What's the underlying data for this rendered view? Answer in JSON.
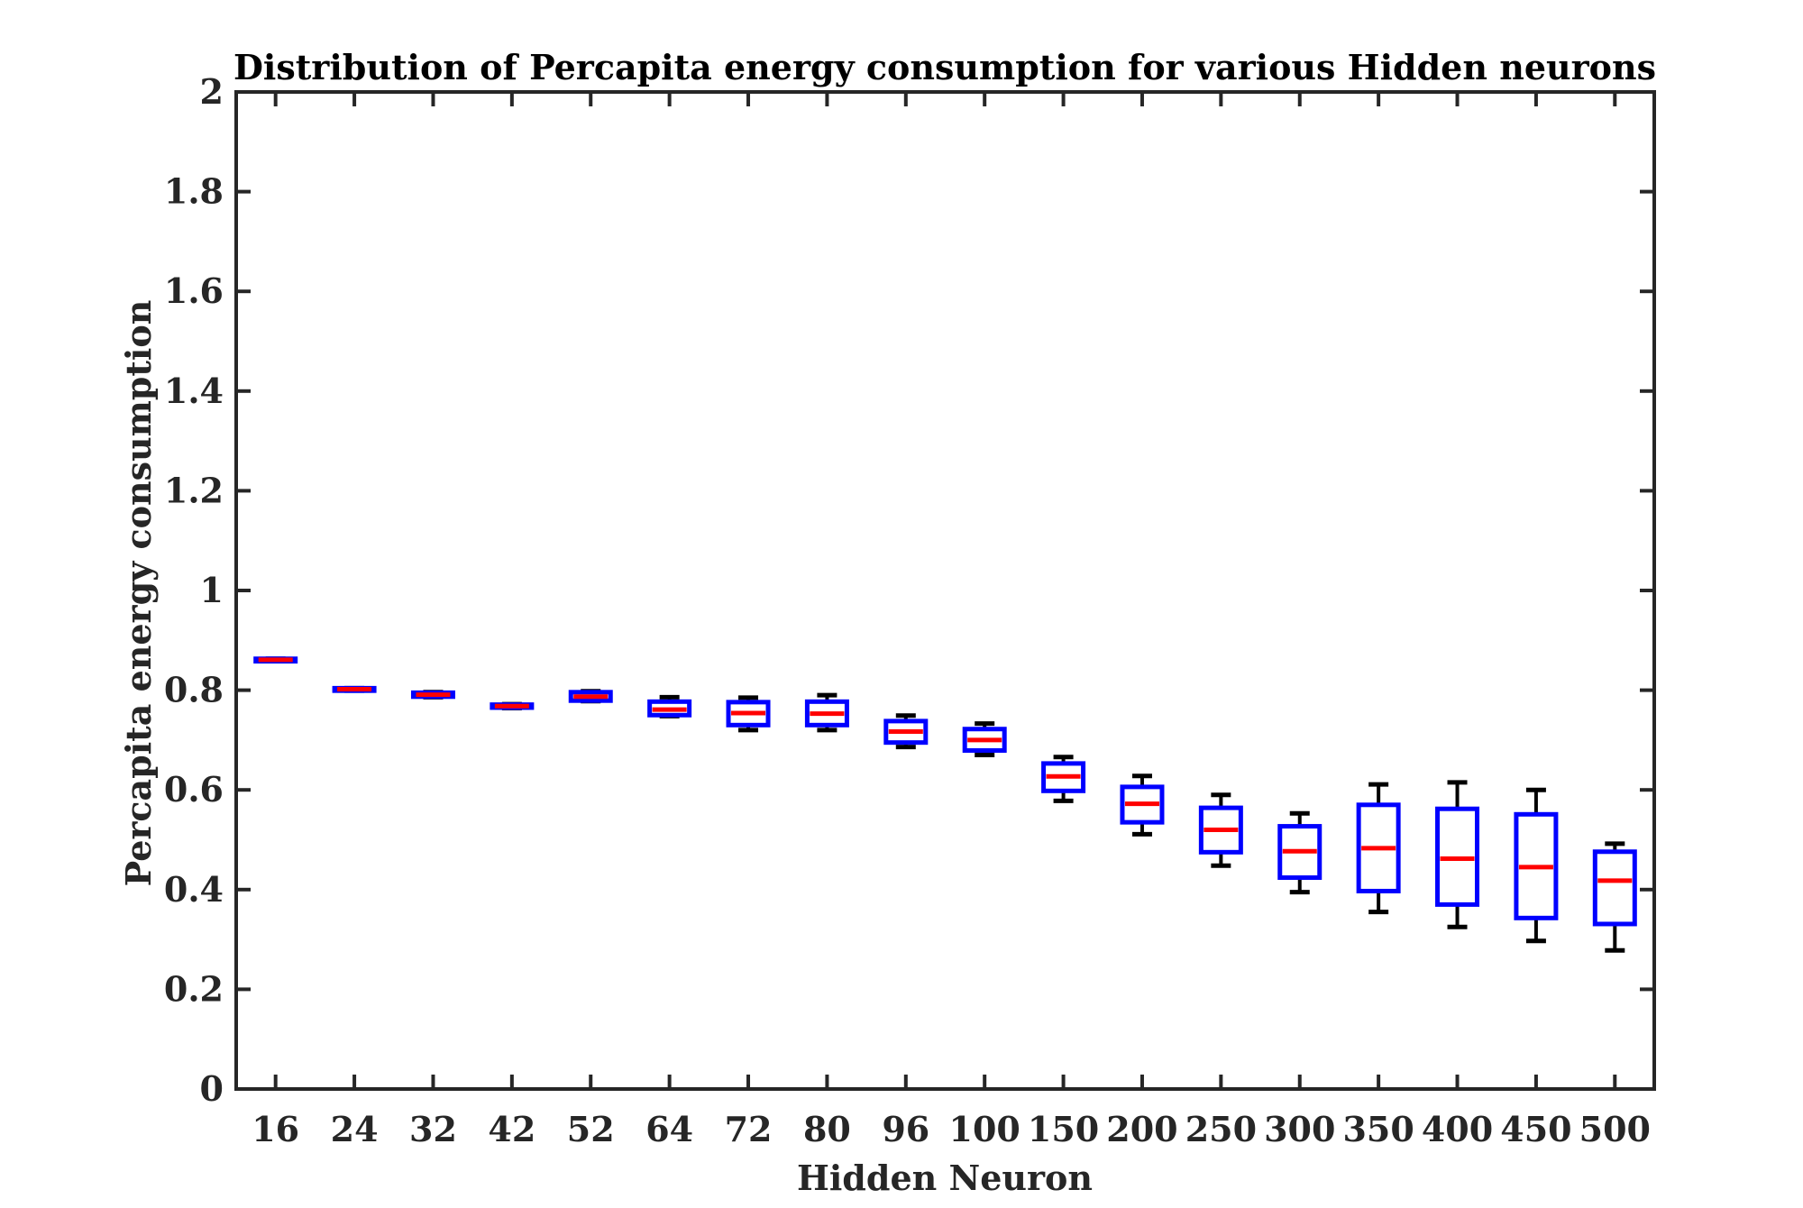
{
  "chart_data": {
    "type": "boxplot",
    "title": "Distribution of Percapita energy consumption for various Hidden neurons",
    "xlabel": "Hidden Neuron",
    "ylabel": "Percapita energy consumption",
    "ylim": [
      0,
      2
    ],
    "yticks": [
      "0",
      "0.2",
      "0.4",
      "0.6",
      "0.8",
      "1",
      "1.2",
      "1.4",
      "1.6",
      "1.8",
      "2"
    ],
    "grid": false,
    "categories": [
      "16",
      "24",
      "32",
      "42",
      "52",
      "64",
      "72",
      "80",
      "96",
      "100",
      "150",
      "200",
      "250",
      "300",
      "350",
      "400",
      "450",
      "500"
    ],
    "boxes": [
      {
        "min": 0.858,
        "q1": 0.858,
        "median": 0.861,
        "q3": 0.863,
        "max": 0.863
      },
      {
        "min": 0.799,
        "q1": 0.799,
        "median": 0.802,
        "q3": 0.804,
        "max": 0.804
      },
      {
        "min": 0.786,
        "q1": 0.787,
        "median": 0.791,
        "q3": 0.795,
        "max": 0.796
      },
      {
        "min": 0.764,
        "q1": 0.765,
        "median": 0.768,
        "q3": 0.771,
        "max": 0.772
      },
      {
        "min": 0.778,
        "q1": 0.779,
        "median": 0.787,
        "q3": 0.796,
        "max": 0.798
      },
      {
        "min": 0.748,
        "q1": 0.75,
        "median": 0.761,
        "q3": 0.777,
        "max": 0.786
      },
      {
        "min": 0.72,
        "q1": 0.73,
        "median": 0.754,
        "q3": 0.776,
        "max": 0.785
      },
      {
        "min": 0.72,
        "q1": 0.73,
        "median": 0.753,
        "q3": 0.777,
        "max": 0.79
      },
      {
        "min": 0.686,
        "q1": 0.695,
        "median": 0.717,
        "q3": 0.738,
        "max": 0.749
      },
      {
        "min": 0.67,
        "q1": 0.679,
        "median": 0.7,
        "q3": 0.722,
        "max": 0.733
      },
      {
        "min": 0.578,
        "q1": 0.598,
        "median": 0.627,
        "q3": 0.653,
        "max": 0.666
      },
      {
        "min": 0.511,
        "q1": 0.535,
        "median": 0.572,
        "q3": 0.606,
        "max": 0.628
      },
      {
        "min": 0.448,
        "q1": 0.475,
        "median": 0.52,
        "q3": 0.564,
        "max": 0.59
      },
      {
        "min": 0.395,
        "q1": 0.424,
        "median": 0.477,
        "q3": 0.527,
        "max": 0.553
      },
      {
        "min": 0.355,
        "q1": 0.397,
        "median": 0.483,
        "q3": 0.57,
        "max": 0.611
      },
      {
        "min": 0.325,
        "q1": 0.37,
        "median": 0.462,
        "q3": 0.562,
        "max": 0.615
      },
      {
        "min": 0.297,
        "q1": 0.343,
        "median": 0.445,
        "q3": 0.551,
        "max": 0.6
      },
      {
        "min": 0.278,
        "q1": 0.331,
        "median": 0.418,
        "q3": 0.476,
        "max": 0.492
      }
    ],
    "colors": {
      "box": "#0000ff",
      "median": "#ff0000",
      "whisker": "#000000",
      "axes": "#262626"
    }
  }
}
